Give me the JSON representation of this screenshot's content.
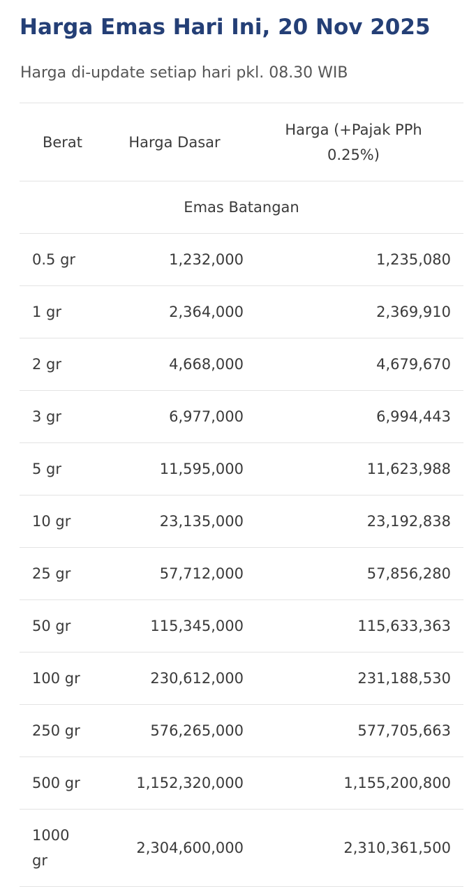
{
  "header": {
    "title": "Harga Emas Hari Ini, 20 Nov 2025",
    "subtitle": "Harga di-update setiap hari pkl. 08.30 WIB"
  },
  "table": {
    "columns": {
      "berat": "Berat",
      "dasar": "Harga Dasar",
      "pajak": "Harga (+Pajak PPh 0.25%)"
    },
    "section_label": "Emas Batangan",
    "rows": [
      {
        "berat": "0.5 gr",
        "dasar": "1,232,000",
        "pajak": "1,235,080"
      },
      {
        "berat": "1 gr",
        "dasar": "2,364,000",
        "pajak": "2,369,910"
      },
      {
        "berat": "2 gr",
        "dasar": "4,668,000",
        "pajak": "4,679,670"
      },
      {
        "berat": "3 gr",
        "dasar": "6,977,000",
        "pajak": "6,994,443"
      },
      {
        "berat": "5 gr",
        "dasar": "11,595,000",
        "pajak": "11,623,988"
      },
      {
        "berat": "10 gr",
        "dasar": "23,135,000",
        "pajak": "23,192,838"
      },
      {
        "berat": "25 gr",
        "dasar": "57,712,000",
        "pajak": "57,856,280"
      },
      {
        "berat": "50 gr",
        "dasar": "115,345,000",
        "pajak": "115,633,363"
      },
      {
        "berat": "100 gr",
        "dasar": "230,612,000",
        "pajak": "231,188,530"
      },
      {
        "berat": "250 gr",
        "dasar": "576,265,000",
        "pajak": "577,705,663"
      },
      {
        "berat": "500 gr",
        "dasar": "1,152,320,000",
        "pajak": "1,155,200,800"
      },
      {
        "berat": "1000 gr",
        "dasar": "2,304,600,000",
        "pajak": "2,310,361,500"
      }
    ]
  },
  "colors": {
    "title": "#243f76",
    "text": "#3a3a3a",
    "divider": "#e3e3e3"
  }
}
